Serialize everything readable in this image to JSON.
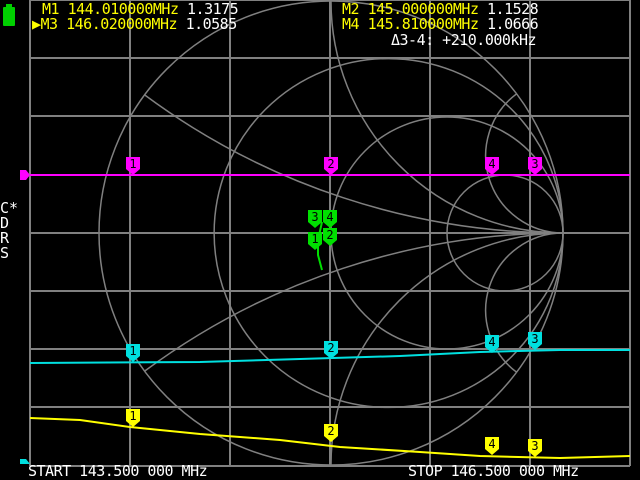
{
  "markers_readout": [
    {
      "label": "M1",
      "freq": "144.010000MHz",
      "value": "1.3175",
      "active": false
    },
    {
      "label": "M3",
      "freq": "146.020000MHz",
      "value": "1.0585",
      "active": true
    },
    {
      "label": "M2",
      "freq": "145.000000MHz",
      "value": "1.1528",
      "active": false
    },
    {
      "label": "M4",
      "freq": "145.810000MHz",
      "value": "1.0666",
      "active": false
    }
  ],
  "delta": "Δ3-4: +210.000kHz",
  "side_labels": [
    "C*",
    "D",
    "R",
    "S"
  ],
  "start": "START 143.500 000 MHz",
  "stop": "STOP 146.500 000 MHz",
  "marker_numbers": [
    "1",
    "2",
    "4",
    "3"
  ],
  "colors": {
    "trace1": "#ff00ff",
    "trace2": "#00e0e0",
    "trace3": "#ffff00",
    "smith": "#00e000",
    "grid": "#808080",
    "battery": "#00d000"
  },
  "battery_icon": "battery-icon"
}
